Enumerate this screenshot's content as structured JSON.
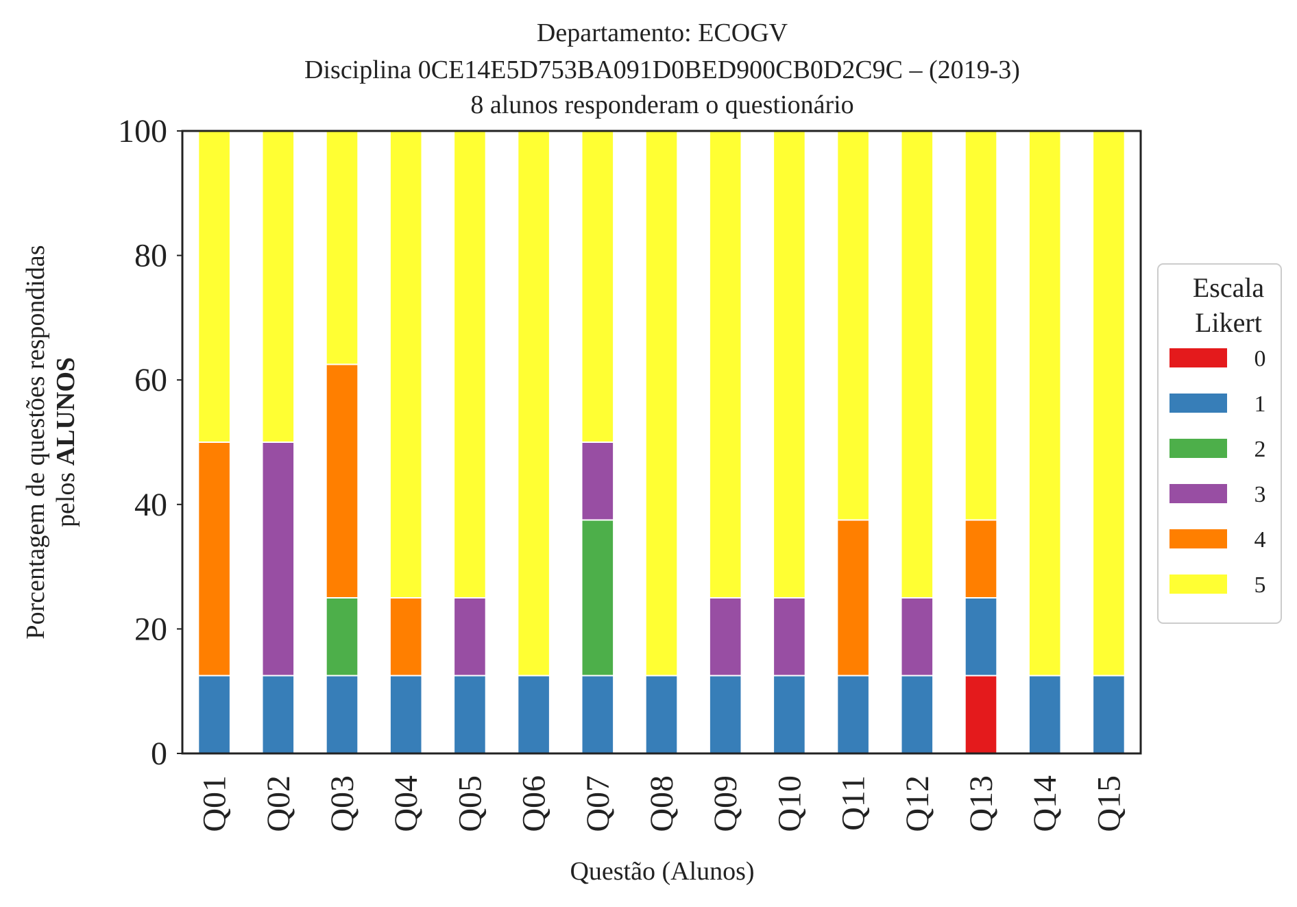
{
  "chart_data": {
    "type": "bar",
    "stacked": true,
    "title_lines": [
      "Departamento: ECOGV",
      "Disciplina 0CE14E5D753BA091D0BED900CB0D2C9C – (2019-3)",
      "8 alunos responderam o questionário"
    ],
    "xlabel": "Questão (Alunos)",
    "ylabel_line1": "Porcentagem de questões respondidas",
    "ylabel_line2_prefix": "pelos ",
    "ylabel_line2_bold": "ALUNOS",
    "ylim": [
      0,
      100
    ],
    "yticks": [
      "0",
      "20",
      "40",
      "60",
      "80",
      "100"
    ],
    "categories": [
      "Q01",
      "Q02",
      "Q03",
      "Q04",
      "Q05",
      "Q06",
      "Q07",
      "Q08",
      "Q09",
      "Q10",
      "Q11",
      "Q12",
      "Q13",
      "Q14",
      "Q15"
    ],
    "legend": {
      "title_line1": "Escala",
      "title_line2": "Likert",
      "placement": "right"
    },
    "grid": false,
    "series": [
      {
        "name": "0",
        "color": "#e41a1c",
        "values": [
          0,
          0,
          0,
          0,
          0,
          0,
          0,
          0,
          0,
          0,
          0,
          0,
          12.5,
          0,
          0
        ]
      },
      {
        "name": "1",
        "color": "#377eb8",
        "values": [
          12.5,
          12.5,
          12.5,
          12.5,
          12.5,
          12.5,
          12.5,
          12.5,
          12.5,
          12.5,
          12.5,
          12.5,
          12.5,
          12.5,
          12.5
        ]
      },
      {
        "name": "2",
        "color": "#4daf4a",
        "values": [
          0,
          0,
          12.5,
          0,
          0,
          0,
          25,
          0,
          0,
          0,
          0,
          0,
          0,
          0,
          0
        ]
      },
      {
        "name": "3",
        "color": "#984ea3",
        "values": [
          0,
          37.5,
          0,
          0,
          12.5,
          0,
          12.5,
          0,
          12.5,
          12.5,
          0,
          12.5,
          0,
          0,
          0
        ]
      },
      {
        "name": "4",
        "color": "#ff7f00",
        "values": [
          37.5,
          0,
          37.5,
          12.5,
          0,
          0,
          0,
          0,
          0,
          0,
          25,
          0,
          12.5,
          0,
          0
        ]
      },
      {
        "name": "5",
        "color": "#ffff33",
        "values": [
          50,
          50,
          37.5,
          75,
          75,
          87.5,
          50,
          87.5,
          75,
          75,
          62.5,
          75,
          62.5,
          87.5,
          87.5
        ]
      }
    ]
  }
}
